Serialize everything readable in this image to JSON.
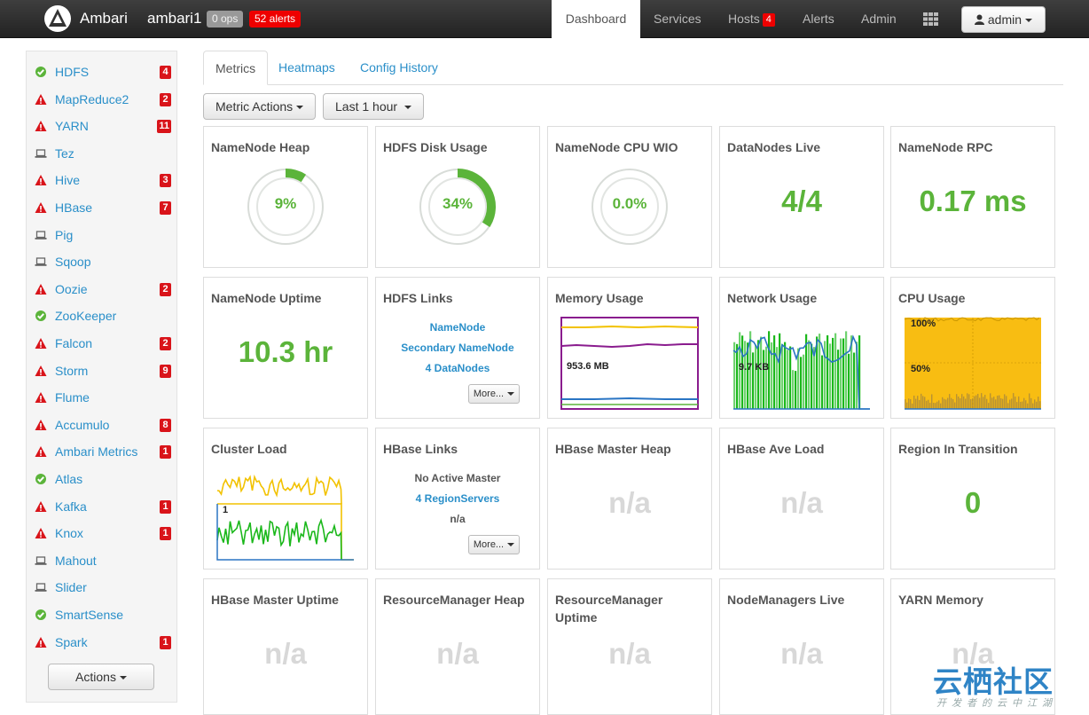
{
  "navbar": {
    "brand": "Ambari",
    "cluster": "ambari1",
    "ops_badge": "0 ops",
    "alerts_badge": "52 alerts",
    "items": [
      {
        "label": "Dashboard"
      },
      {
        "label": "Services"
      },
      {
        "label": "Hosts",
        "badge": "4"
      },
      {
        "label": "Alerts"
      },
      {
        "label": "Admin"
      }
    ],
    "user": "admin",
    "icons": {
      "logo": "ambari-logo-icon",
      "apps": "grid-icon",
      "user": "user-icon"
    }
  },
  "sidebar": {
    "services": [
      {
        "name": "HDFS",
        "status": "ok",
        "badge": "4"
      },
      {
        "name": "MapReduce2",
        "status": "alert",
        "badge": "2"
      },
      {
        "name": "YARN",
        "status": "alert",
        "badge": "11"
      },
      {
        "name": "Tez",
        "status": "client",
        "badge": ""
      },
      {
        "name": "Hive",
        "status": "alert",
        "badge": "3"
      },
      {
        "name": "HBase",
        "status": "alert",
        "badge": "7"
      },
      {
        "name": "Pig",
        "status": "client",
        "badge": ""
      },
      {
        "name": "Sqoop",
        "status": "client",
        "badge": ""
      },
      {
        "name": "Oozie",
        "status": "alert",
        "badge": "2"
      },
      {
        "name": "ZooKeeper",
        "status": "ok",
        "badge": ""
      },
      {
        "name": "Falcon",
        "status": "alert",
        "badge": "2"
      },
      {
        "name": "Storm",
        "status": "alert",
        "badge": "9"
      },
      {
        "name": "Flume",
        "status": "alert",
        "badge": ""
      },
      {
        "name": "Accumulo",
        "status": "alert",
        "badge": "8"
      },
      {
        "name": "Ambari Metrics",
        "status": "alert",
        "badge": "1"
      },
      {
        "name": "Atlas",
        "status": "ok",
        "badge": ""
      },
      {
        "name": "Kafka",
        "status": "alert",
        "badge": "1"
      },
      {
        "name": "Knox",
        "status": "alert",
        "badge": "1"
      },
      {
        "name": "Mahout",
        "status": "client",
        "badge": ""
      },
      {
        "name": "Slider",
        "status": "client",
        "badge": ""
      },
      {
        "name": "SmartSense",
        "status": "ok",
        "badge": ""
      },
      {
        "name": "Spark",
        "status": "alert",
        "badge": "1"
      }
    ],
    "actions_label": "Actions",
    "status_icons": {
      "ok": "check-circle-icon",
      "alert": "warning-triangle-icon",
      "client": "laptop-icon"
    }
  },
  "tabs": [
    {
      "label": "Metrics"
    },
    {
      "label": "Heatmaps"
    },
    {
      "label": "Config History"
    }
  ],
  "toolbar": {
    "metric_actions": "Metric Actions",
    "time_range": "Last 1 hour"
  },
  "widgets": {
    "namenode_heap": {
      "title": "NameNode Heap",
      "value": "9%",
      "fraction": 0.09
    },
    "hdfs_disk": {
      "title": "HDFS Disk Usage",
      "value": "34%",
      "fraction": 0.34
    },
    "namenode_cpu": {
      "title": "NameNode CPU WIO",
      "value": "0.0%",
      "fraction": 0.0
    },
    "datanodes_live": {
      "title": "DataNodes Live",
      "value": "4/4"
    },
    "namenode_rpc": {
      "title": "NameNode RPC",
      "value": "0.17 ms"
    },
    "namenode_uptime": {
      "title": "NameNode Uptime",
      "value": "10.3 hr"
    },
    "hdfs_links": {
      "title": "HDFS Links",
      "links": [
        "NameNode",
        "Secondary NameNode",
        "4 DataNodes"
      ],
      "more": "More..."
    },
    "memory_usage": {
      "title": "Memory Usage",
      "label": "953.6 MB"
    },
    "network_usage": {
      "title": "Network Usage",
      "label": "9.7 KB"
    },
    "cpu_usage": {
      "title": "CPU Usage",
      "label_top": "100%",
      "label_mid": "50%"
    },
    "cluster_load": {
      "title": "Cluster Load",
      "label": "1"
    },
    "hbase_links": {
      "title": "HBase Links",
      "master": "No Active Master",
      "regionservers": "4 RegionServers",
      "na": "n/a",
      "more": "More..."
    },
    "hbase_master_heap": {
      "title": "HBase Master Heap",
      "value": "n/a"
    },
    "hbase_ave_load": {
      "title": "HBase Ave Load",
      "value": "n/a"
    },
    "region_in_transition": {
      "title": "Region In Transition",
      "value": "0"
    },
    "hbase_master_uptime": {
      "title": "HBase Master Uptime",
      "value": "n/a"
    },
    "rm_heap": {
      "title": "ResourceManager Heap",
      "value": "n/a"
    },
    "rm_uptime": {
      "title": "ResourceManager Uptime",
      "value": "n/a"
    },
    "nodemanagers_live": {
      "title": "NodeManagers Live",
      "value": "n/a"
    },
    "yarn_memory": {
      "title": "YARN Memory",
      "value": "n/a"
    }
  },
  "watermark": {
    "main": "云栖社区",
    "sub": "开发者的云中江湖"
  },
  "colors": {
    "green": "#5bb43a",
    "link": "#2a8fc9",
    "alert": "#d9141a",
    "na": "#d8d8d8",
    "yellow": "#f2c200",
    "purple": "#8a1c8e"
  }
}
